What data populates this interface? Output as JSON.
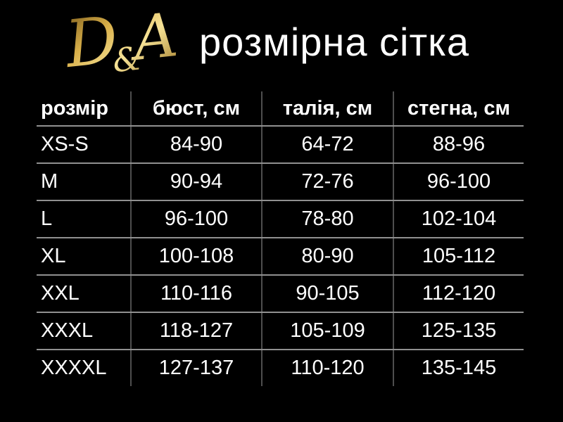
{
  "brand": {
    "logo_d": "D",
    "logo_amp": "&",
    "logo_a": "A",
    "gold_dark": "#6e4f14",
    "gold_mid": "#d9b04a",
    "gold_light": "#f6e296",
    "gold_deep": "#9a731f"
  },
  "chart_data": {
    "type": "table",
    "title": "розмірна сітка",
    "columns": [
      "розмір",
      "бюст, см",
      "талія, см",
      "стегна, см"
    ],
    "rows": [
      [
        "XS-S",
        "84-90",
        "64-72",
        "88-96"
      ],
      [
        "M",
        "90-94",
        "72-76",
        "96-100"
      ],
      [
        "L",
        "96-100",
        "78-80",
        "102-104"
      ],
      [
        "XL",
        "100-108",
        "80-90",
        "105-112"
      ],
      [
        "XXL",
        "110-116",
        "90-105",
        "112-120"
      ],
      [
        "XXXL",
        "118-127",
        "105-109",
        "125-135"
      ],
      [
        "XXXXL",
        "127-137",
        "110-120",
        "135-145"
      ]
    ]
  },
  "colors": {
    "background": "#000000",
    "text": "#ffffff",
    "grid_h": "#909090",
    "grid_v": "#4e4e4e"
  }
}
